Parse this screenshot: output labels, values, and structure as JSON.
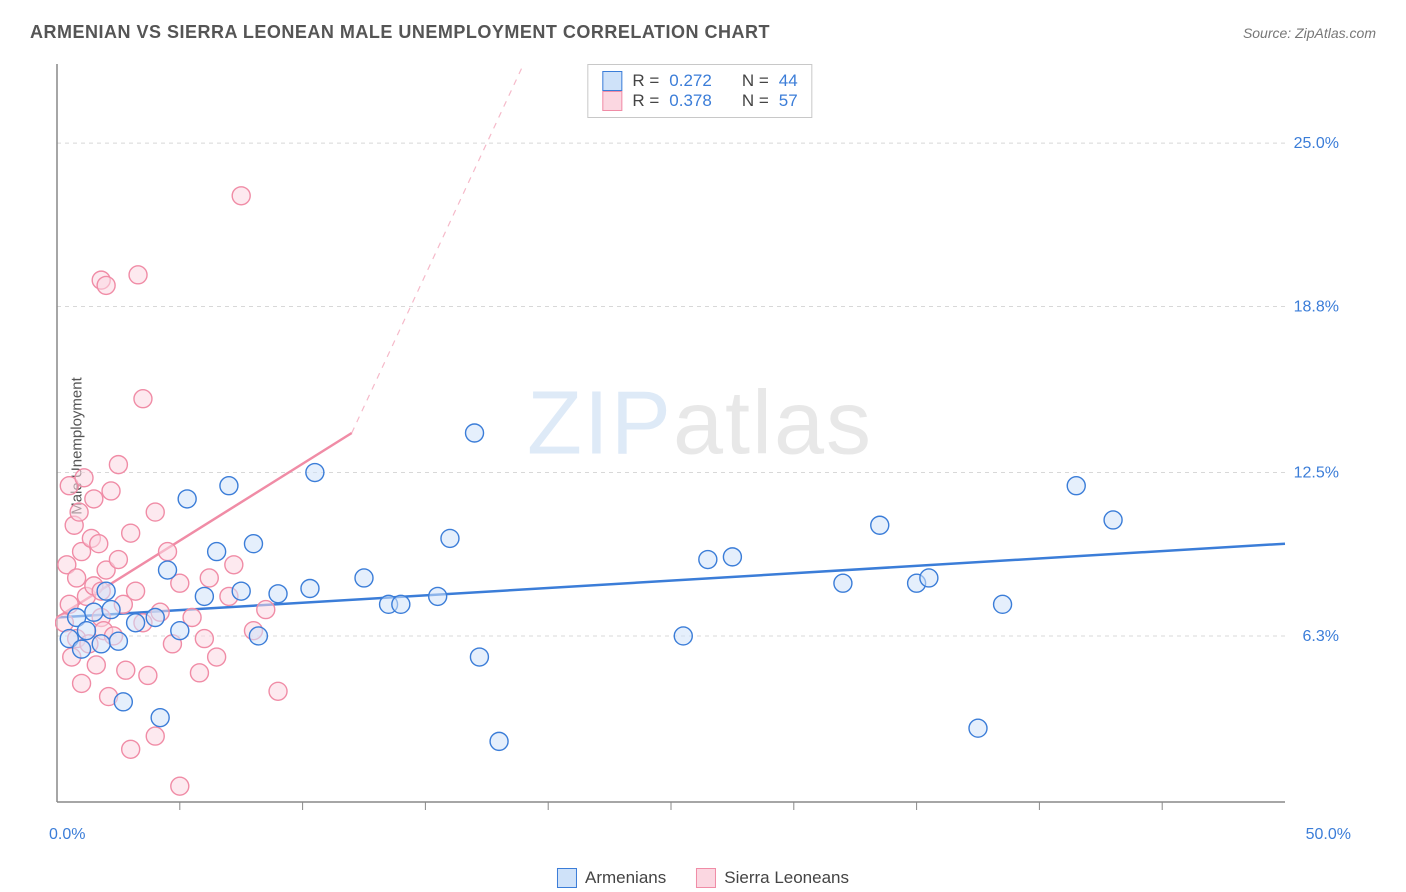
{
  "title": "ARMENIAN VS SIERRA LEONEAN MALE UNEMPLOYMENT CORRELATION CHART",
  "source": "Source: ZipAtlas.com",
  "ylabel": "Male Unemployment",
  "watermark_zip": "ZIP",
  "watermark_atlas": "atlas",
  "colors": {
    "blue_fill": "#cfe2f9",
    "blue_stroke": "#3b7dd8",
    "pink_fill": "#fbd7e1",
    "pink_stroke": "#f08ca6",
    "grid": "#d8d8d8",
    "text": "#555555",
    "val": "#3b7dd8"
  },
  "stats": [
    {
      "color": "blue",
      "r_label": "R =",
      "r": "0.272",
      "n_label": "N =",
      "n": "44"
    },
    {
      "color": "pink",
      "r_label": "R =",
      "r": "0.378",
      "n_label": "N =",
      "n": "57"
    }
  ],
  "series_legend": [
    {
      "color": "blue",
      "label": "Armenians"
    },
    {
      "color": "pink",
      "label": "Sierra Leoneans"
    }
  ],
  "chart": {
    "type": "scatter",
    "xlim": [
      0,
      50
    ],
    "ylim": [
      0,
      28
    ],
    "y_ticks": [
      {
        "v": 6.3,
        "label": "6.3%"
      },
      {
        "v": 12.5,
        "label": "12.5%"
      },
      {
        "v": 18.8,
        "label": "18.8%"
      },
      {
        "v": 25.0,
        "label": "25.0%"
      }
    ],
    "x_ticks_minor": [
      5,
      10,
      15,
      20,
      25,
      30,
      35,
      40,
      45
    ],
    "x_minmax_labels": {
      "min": "0.0%",
      "max": "50.0%"
    },
    "marker_radius": 9,
    "marker_opacity": 0.55,
    "blue_line": {
      "x1": 0,
      "y1": 7.0,
      "x2": 50,
      "y2": 9.8,
      "width": 2.5,
      "dash": "none"
    },
    "pink_line_solid": {
      "x1": 0,
      "y1": 7.0,
      "x2": 12,
      "y2": 14.0,
      "width": 2.5
    },
    "pink_line_dash": {
      "x1": 12,
      "y1": 14.0,
      "x2": 19,
      "y2": 28.0,
      "width": 1.2,
      "dash": "6,6"
    },
    "blue_points": [
      [
        0.5,
        6.2
      ],
      [
        0.8,
        7.0
      ],
      [
        1.0,
        5.8
      ],
      [
        1.2,
        6.5
      ],
      [
        1.5,
        7.2
      ],
      [
        1.8,
        6.0
      ],
      [
        2.0,
        8.0
      ],
      [
        2.2,
        7.3
      ],
      [
        2.5,
        6.1
      ],
      [
        2.7,
        3.8
      ],
      [
        3.2,
        6.8
      ],
      [
        4.0,
        7.0
      ],
      [
        4.2,
        3.2
      ],
      [
        4.5,
        8.8
      ],
      [
        5.0,
        6.5
      ],
      [
        5.3,
        11.5
      ],
      [
        6.0,
        7.8
      ],
      [
        6.5,
        9.5
      ],
      [
        7.0,
        12.0
      ],
      [
        7.5,
        8.0
      ],
      [
        8.0,
        9.8
      ],
      [
        8.2,
        6.3
      ],
      [
        9.0,
        7.9
      ],
      [
        10.3,
        8.1
      ],
      [
        10.5,
        12.5
      ],
      [
        12.5,
        8.5
      ],
      [
        13.5,
        7.5
      ],
      [
        14.0,
        7.5
      ],
      [
        15.5,
        7.8
      ],
      [
        16.0,
        10.0
      ],
      [
        17.0,
        14.0
      ],
      [
        17.2,
        5.5
      ],
      [
        18.0,
        2.3
      ],
      [
        25.5,
        6.3
      ],
      [
        26.5,
        9.2
      ],
      [
        27.5,
        9.3
      ],
      [
        32.0,
        8.3
      ],
      [
        33.5,
        10.5
      ],
      [
        35.0,
        8.3
      ],
      [
        35.5,
        8.5
      ],
      [
        37.5,
        2.8
      ],
      [
        38.5,
        7.5
      ],
      [
        41.5,
        12.0
      ],
      [
        43.0,
        10.7
      ]
    ],
    "pink_points": [
      [
        0.3,
        6.8
      ],
      [
        0.4,
        9.0
      ],
      [
        0.5,
        7.5
      ],
      [
        0.5,
        12.0
      ],
      [
        0.6,
        5.5
      ],
      [
        0.7,
        10.5
      ],
      [
        0.8,
        8.5
      ],
      [
        0.8,
        6.2
      ],
      [
        0.9,
        11.0
      ],
      [
        1.0,
        9.5
      ],
      [
        1.0,
        4.5
      ],
      [
        1.1,
        12.3
      ],
      [
        1.2,
        7.8
      ],
      [
        1.3,
        6.0
      ],
      [
        1.4,
        10.0
      ],
      [
        1.5,
        8.2
      ],
      [
        1.5,
        11.5
      ],
      [
        1.6,
        5.2
      ],
      [
        1.7,
        9.8
      ],
      [
        1.8,
        7.0
      ],
      [
        1.8,
        19.8
      ],
      [
        1.9,
        6.5
      ],
      [
        2.0,
        19.6
      ],
      [
        2.0,
        8.8
      ],
      [
        2.1,
        4.0
      ],
      [
        2.2,
        11.8
      ],
      [
        2.3,
        6.3
      ],
      [
        2.5,
        9.2
      ],
      [
        2.5,
        12.8
      ],
      [
        2.7,
        7.5
      ],
      [
        2.8,
        5.0
      ],
      [
        3.0,
        10.2
      ],
      [
        3.0,
        2.0
      ],
      [
        3.2,
        8.0
      ],
      [
        3.3,
        20.0
      ],
      [
        3.5,
        6.8
      ],
      [
        3.5,
        15.3
      ],
      [
        3.7,
        4.8
      ],
      [
        4.0,
        11.0
      ],
      [
        4.0,
        2.5
      ],
      [
        4.2,
        7.2
      ],
      [
        4.5,
        9.5
      ],
      [
        4.7,
        6.0
      ],
      [
        5.0,
        8.3
      ],
      [
        5.0,
        0.6
      ],
      [
        5.5,
        7.0
      ],
      [
        5.8,
        4.9
      ],
      [
        6.0,
        6.2
      ],
      [
        6.2,
        8.5
      ],
      [
        6.5,
        5.5
      ],
      [
        7.0,
        7.8
      ],
      [
        7.2,
        9.0
      ],
      [
        7.5,
        23.0
      ],
      [
        8.0,
        6.5
      ],
      [
        8.5,
        7.3
      ],
      [
        9.0,
        4.2
      ],
      [
        1.8,
        8.0
      ]
    ]
  }
}
